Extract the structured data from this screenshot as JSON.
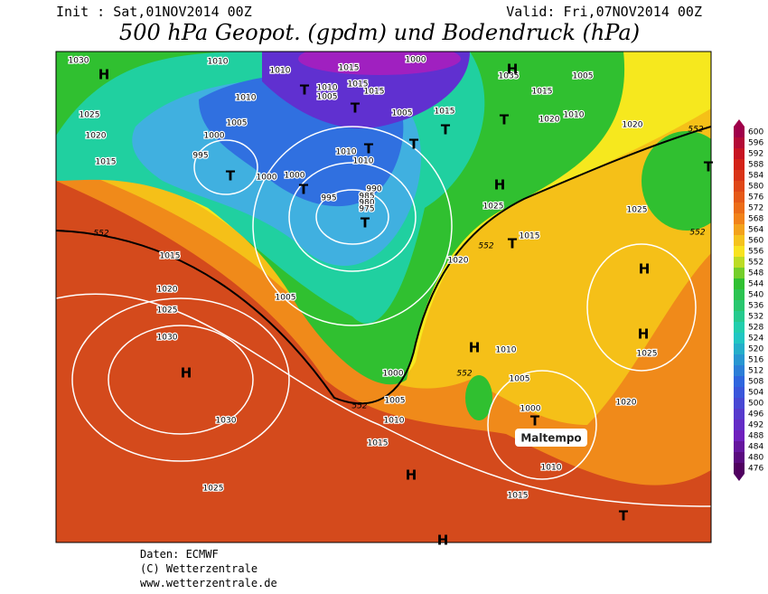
{
  "header": {
    "init": "Init : Sat,01NOV2014 00Z",
    "valid": "Valid: Fri,07NOV2014 00Z",
    "title": "500 hPa Geopot. (gpdm) und Bodendruck (hPa)"
  },
  "legend": {
    "values": [
      600,
      596,
      592,
      588,
      584,
      580,
      576,
      572,
      568,
      564,
      560,
      556,
      552,
      548,
      544,
      540,
      536,
      532,
      528,
      524,
      520,
      516,
      512,
      508,
      504,
      500,
      496,
      492,
      488,
      484,
      480,
      476
    ]
  },
  "isobars": [
    "1030",
    "1010",
    "1010",
    "1015",
    "1000",
    "1010",
    "1005",
    "1015",
    "1015",
    "1010",
    "1005",
    "1000",
    "995",
    "1000",
    "1000",
    "995",
    "990",
    "985",
    "980",
    "975",
    "1010",
    "1010",
    "1005",
    "1015",
    "1025",
    "1020",
    "1015",
    "1035",
    "1015",
    "1005",
    "1020",
    "1010",
    "1020",
    "1025",
    "1015",
    "1025",
    "1020",
    "1015",
    "1020",
    "1025",
    "1030",
    "1005",
    "1030",
    "1025",
    "1000",
    "1005",
    "1010",
    "1015",
    "1010",
    "1005",
    "1000",
    "1010",
    "1015",
    "1020",
    "1025"
  ],
  "contour_552": [
    "552",
    "552",
    "552",
    "552",
    "552",
    "552"
  ],
  "centers": [
    "H",
    "T",
    "T",
    "T",
    "T",
    "T",
    "T",
    "T",
    "T",
    "T",
    "H",
    "T",
    "H",
    "H",
    "H",
    "H",
    "T",
    "H",
    "T",
    "H",
    "T",
    "H"
  ],
  "annotation": "Maltempo",
  "footer": [
    "Daten: ECMWF",
    "(C) Wetterzentrale",
    "www.wetterzentrale.de"
  ]
}
